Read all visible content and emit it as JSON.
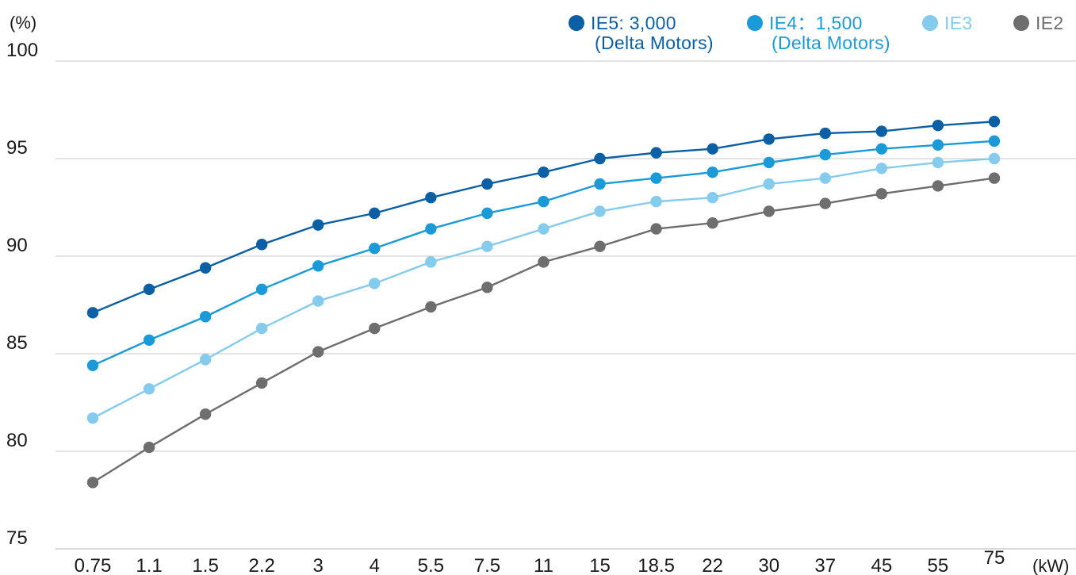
{
  "chart_data": {
    "type": "line",
    "y_unit": "(%)",
    "x_unit": "(kW)",
    "ylim": [
      75,
      100
    ],
    "yticks": [
      75,
      80,
      85,
      90,
      95,
      100
    ],
    "grid": "horizontal",
    "legend_position": "top-right",
    "categories": [
      "0.75",
      "1.1",
      "1.5",
      "2.2",
      "3",
      "4",
      "5.5",
      "7.5",
      "11",
      "15",
      "18.5",
      "22",
      "30",
      "37",
      "45",
      "55",
      "75"
    ],
    "series": [
      {
        "name": "IE5: 3,000",
        "note": "(Delta Motors)",
        "color": "#0b5fa5",
        "values": [
          87.1,
          88.3,
          89.4,
          90.6,
          91.6,
          92.2,
          93.0,
          93.7,
          94.3,
          95.0,
          95.3,
          95.5,
          96.0,
          96.3,
          96.4,
          96.7,
          96.9
        ]
      },
      {
        "name": "IE4：1,500",
        "note": "(Delta Motors)",
        "color": "#1a9ad9",
        "values": [
          84.4,
          85.7,
          86.9,
          88.3,
          89.5,
          90.4,
          91.4,
          92.2,
          92.8,
          93.7,
          94.0,
          94.3,
          94.8,
          95.2,
          95.5,
          95.7,
          95.9
        ]
      },
      {
        "name": "IE3",
        "color": "#85cbee",
        "values": [
          81.7,
          83.2,
          84.7,
          86.3,
          87.7,
          88.6,
          89.7,
          90.5,
          91.4,
          92.3,
          92.8,
          93.0,
          93.7,
          94.0,
          94.5,
          94.8,
          95.0
        ]
      },
      {
        "name": "IE2",
        "color": "#6e6e6e",
        "values": [
          78.4,
          80.2,
          81.9,
          83.5,
          85.1,
          86.3,
          87.4,
          88.4,
          89.7,
          90.5,
          91.4,
          91.7,
          92.3,
          92.7,
          93.2,
          93.6,
          94.0
        ]
      }
    ]
  }
}
